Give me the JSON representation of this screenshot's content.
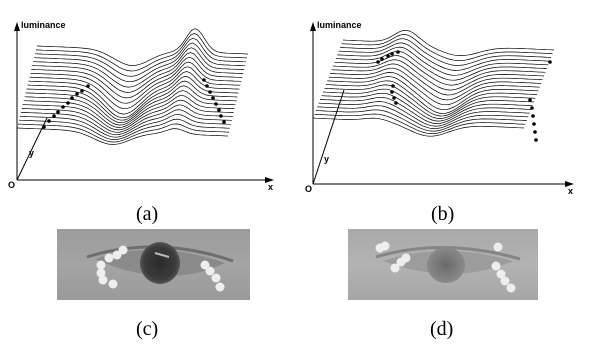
{
  "figure": {
    "panel_a": {
      "caption": "(a)",
      "axis_z": "luminance",
      "axis_y": "y",
      "axis_x": "x",
      "origin": "O"
    },
    "panel_b": {
      "caption": "(b)",
      "axis_z": "luminance",
      "axis_y": "y",
      "axis_x": "x",
      "origin": "O"
    },
    "panel_c": {
      "caption": "(c)"
    },
    "panel_d": {
      "caption": "(d)"
    }
  }
}
